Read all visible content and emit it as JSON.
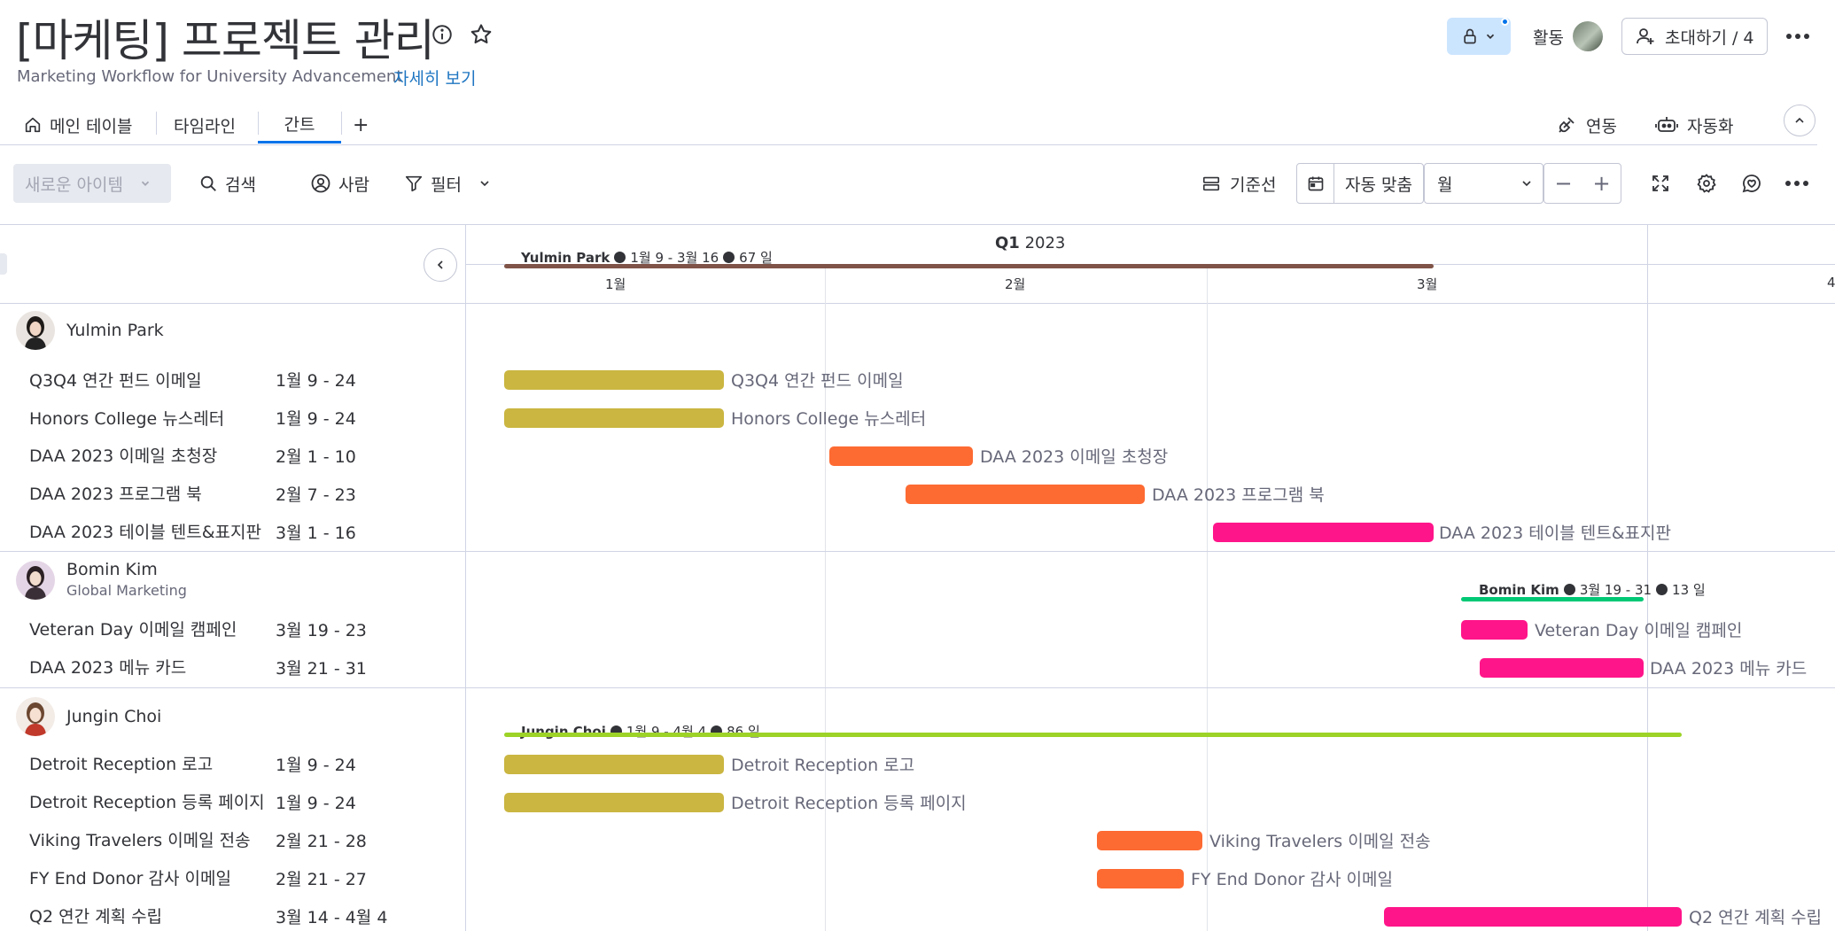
{
  "header": {
    "title": "[마케팅] 프로젝트 관리",
    "subtitle": "Marketing Workflow for University Advancement",
    "more_link": "자세히 보기",
    "activity": "활동",
    "invite": "초대하기 / 4"
  },
  "tabs": {
    "main_table": "메인 테이블",
    "timeline": "타임라인",
    "gantt": "간트",
    "add": "+",
    "integrate": "연동",
    "automate": "자동화"
  },
  "toolbar": {
    "new_item": "새로운 아이템",
    "search": "검색",
    "person": "사람",
    "filter": "필터",
    "baseline": "기준선",
    "autofit": "자동 맞춤",
    "scale": "월",
    "zoom_out": "−",
    "zoom_in": "+"
  },
  "timeline": {
    "quarter_bold": "Q1",
    "quarter_year": "2023",
    "months": [
      "1월",
      "2월",
      "3월",
      "4"
    ]
  },
  "colors": {
    "accent": "#0073ea",
    "done": "#cab641",
    "working": "#fd6a32",
    "stuck": "#ff158a",
    "group1": "#7f5347",
    "group2": "#00c875",
    "group3": "#9cd326"
  },
  "groups": [
    {
      "person": "Yulmin Park",
      "subtitle": "",
      "summary": {
        "name": "Yulmin Park",
        "range": "1월 9 - 3월 16",
        "days": "67 일"
      },
      "tasks": [
        {
          "name": "Q3Q4 연간 펀드 이메일",
          "date": "1월 9 - 24"
        },
        {
          "name": "Honors College 뉴스레터",
          "date": "1월 9 - 24"
        },
        {
          "name": "DAA 2023 이메일 초청장",
          "date": "2월 1 - 10"
        },
        {
          "name": "DAA 2023 프로그램 북",
          "date": "2월 7 - 23"
        },
        {
          "name": "DAA 2023 테이블 텐트&표지판",
          "date": "3월 1 - 16"
        }
      ]
    },
    {
      "person": "Bomin Kim",
      "subtitle": "Global Marketing",
      "summary": {
        "name": "Bomin Kim",
        "range": "3월 19 - 31",
        "days": "13 일"
      },
      "tasks": [
        {
          "name": "Veteran Day 이메일 캠페인",
          "date": "3월 19 - 23"
        },
        {
          "name": "DAA 2023 메뉴 카드",
          "date": "3월 21 - 31"
        }
      ]
    },
    {
      "person": "Jungin Choi",
      "subtitle": "",
      "summary": {
        "name": "Jungin Choi",
        "range": "1월 9 - 4월 4",
        "days": "86 일"
      },
      "tasks": [
        {
          "name": "Detroit Reception 로고",
          "date": "1월 9 - 24"
        },
        {
          "name": "Detroit Reception 등록 페이지",
          "date": "1월 9 - 24"
        },
        {
          "name": "Viking Travelers 이메일 전송",
          "date": "2월 21 - 28"
        },
        {
          "name": "FY End Donor 감사 이메일",
          "date": "2월 21 - 27"
        },
        {
          "name": "Q2 연간 계획 수립",
          "date": "3월 14 - 4월 4"
        }
      ]
    }
  ]
}
